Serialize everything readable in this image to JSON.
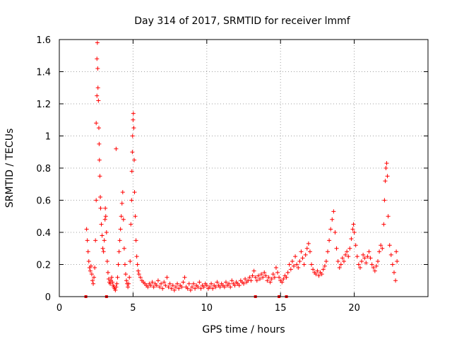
{
  "chart_data": {
    "type": "scatter",
    "title": "Day 314 of 2017, SRMTID for receiver lmmf",
    "xlabel": "GPS time / hours",
    "ylabel": "SRMTID / TECUs",
    "xlim": [
      0,
      25
    ],
    "ylim": [
      0,
      1.6
    ],
    "xticks": [
      0,
      5,
      10,
      15,
      20
    ],
    "yticks": [
      0,
      0.2,
      0.4,
      0.6,
      0.8,
      1,
      1.2,
      1.4,
      1.6
    ],
    "xtick_labels": [
      "0",
      "5",
      "10",
      "15",
      "20"
    ],
    "ytick_labels": [
      "0",
      "0.2",
      "0.4",
      "0.6",
      "0.8",
      "1",
      "1.2",
      "1.4",
      "1.6"
    ],
    "grid": true,
    "marker": "+",
    "color": "#ff0000",
    "baseline_markers_x": [
      1.8,
      3.2,
      13.3,
      14.9,
      15.4
    ],
    "series": [
      {
        "name": "SRMTID",
        "points": [
          [
            1.85,
            0.42
          ],
          [
            1.9,
            0.35
          ],
          [
            1.95,
            0.28
          ],
          [
            2.0,
            0.22
          ],
          [
            2.05,
            0.18
          ],
          [
            2.1,
            0.16
          ],
          [
            2.15,
            0.19
          ],
          [
            2.2,
            0.14
          ],
          [
            2.25,
            0.1
          ],
          [
            2.3,
            0.08
          ],
          [
            2.35,
            0.12
          ],
          [
            2.4,
            0.18
          ],
          [
            2.45,
            0.35
          ],
          [
            2.5,
            0.6
          ],
          [
            2.5,
            1.08
          ],
          [
            2.55,
            1.25
          ],
          [
            2.55,
            1.48
          ],
          [
            2.58,
            1.58
          ],
          [
            2.6,
            1.42
          ],
          [
            2.62,
            1.3
          ],
          [
            2.65,
            1.22
          ],
          [
            2.68,
            1.05
          ],
          [
            2.7,
            0.95
          ],
          [
            2.72,
            0.85
          ],
          [
            2.75,
            0.75
          ],
          [
            2.78,
            0.62
          ],
          [
            2.8,
            0.55
          ],
          [
            2.85,
            0.45
          ],
          [
            2.9,
            0.38
          ],
          [
            2.95,
            0.3
          ],
          [
            3.0,
            0.28
          ],
          [
            3.05,
            0.35
          ],
          [
            3.1,
            0.48
          ],
          [
            3.12,
            0.55
          ],
          [
            3.15,
            0.5
          ],
          [
            3.2,
            0.4
          ],
          [
            3.25,
            0.22
          ],
          [
            3.3,
            0.15
          ],
          [
            3.35,
            0.11
          ],
          [
            3.4,
            0.09
          ],
          [
            3.45,
            0.08
          ],
          [
            3.5,
            0.1
          ],
          [
            3.55,
            0.12
          ],
          [
            3.6,
            0.09
          ],
          [
            3.65,
            0.07
          ],
          [
            3.7,
            0.06
          ],
          [
            3.75,
            0.05
          ],
          [
            3.8,
            0.04
          ],
          [
            3.85,
            0.06
          ],
          [
            3.85,
            0.92
          ],
          [
            3.9,
            0.08
          ],
          [
            3.95,
            0.12
          ],
          [
            4.0,
            0.2
          ],
          [
            4.05,
            0.28
          ],
          [
            4.1,
            0.35
          ],
          [
            4.15,
            0.42
          ],
          [
            4.2,
            0.5
          ],
          [
            4.25,
            0.58
          ],
          [
            4.3,
            0.65
          ],
          [
            4.35,
            0.48
          ],
          [
            4.4,
            0.3
          ],
          [
            4.45,
            0.2
          ],
          [
            4.5,
            0.14
          ],
          [
            4.55,
            0.1
          ],
          [
            4.6,
            0.08
          ],
          [
            4.65,
            0.06
          ],
          [
            4.7,
            0.08
          ],
          [
            4.75,
            0.12
          ],
          [
            4.8,
            0.22
          ],
          [
            4.85,
            0.45
          ],
          [
            4.9,
            0.6
          ],
          [
            4.92,
            0.78
          ],
          [
            4.95,
            0.9
          ],
          [
            4.97,
            1.0
          ],
          [
            5.0,
            1.1
          ],
          [
            5.02,
            1.14
          ],
          [
            5.05,
            1.05
          ],
          [
            5.08,
            0.85
          ],
          [
            5.1,
            0.65
          ],
          [
            5.15,
            0.5
          ],
          [
            5.2,
            0.35
          ],
          [
            5.25,
            0.25
          ],
          [
            5.3,
            0.2
          ],
          [
            5.35,
            0.16
          ],
          [
            5.4,
            0.14
          ],
          [
            5.5,
            0.12
          ],
          [
            5.6,
            0.1
          ],
          [
            5.7,
            0.09
          ],
          [
            5.8,
            0.08
          ],
          [
            5.9,
            0.07
          ],
          [
            6.0,
            0.06
          ],
          [
            6.1,
            0.08
          ],
          [
            6.2,
            0.07
          ],
          [
            6.3,
            0.09
          ],
          [
            6.4,
            0.06
          ],
          [
            6.5,
            0.08
          ],
          [
            6.6,
            0.07
          ],
          [
            6.7,
            0.1
          ],
          [
            6.8,
            0.06
          ],
          [
            6.9,
            0.08
          ],
          [
            7.0,
            0.05
          ],
          [
            7.1,
            0.09
          ],
          [
            7.2,
            0.07
          ],
          [
            7.3,
            0.12
          ],
          [
            7.4,
            0.06
          ],
          [
            7.5,
            0.08
          ],
          [
            7.6,
            0.05
          ],
          [
            7.7,
            0.07
          ],
          [
            7.8,
            0.04
          ],
          [
            7.9,
            0.06
          ],
          [
            8.0,
            0.08
          ],
          [
            8.1,
            0.05
          ],
          [
            8.2,
            0.07
          ],
          [
            8.3,
            0.06
          ],
          [
            8.4,
            0.09
          ],
          [
            8.5,
            0.12
          ],
          [
            8.6,
            0.06
          ],
          [
            8.7,
            0.05
          ],
          [
            8.8,
            0.08
          ],
          [
            8.9,
            0.04
          ],
          [
            9.0,
            0.06
          ],
          [
            9.1,
            0.08
          ],
          [
            9.2,
            0.05
          ],
          [
            9.3,
            0.07
          ],
          [
            9.4,
            0.06
          ],
          [
            9.5,
            0.09
          ],
          [
            9.6,
            0.05
          ],
          [
            9.7,
            0.07
          ],
          [
            9.8,
            0.06
          ],
          [
            9.9,
            0.08
          ],
          [
            10.0,
            0.07
          ],
          [
            10.1,
            0.05
          ],
          [
            10.2,
            0.06
          ],
          [
            10.3,
            0.08
          ],
          [
            10.4,
            0.05
          ],
          [
            10.5,
            0.07
          ],
          [
            10.6,
            0.06
          ],
          [
            10.7,
            0.09
          ],
          [
            10.8,
            0.07
          ],
          [
            10.9,
            0.06
          ],
          [
            11.0,
            0.08
          ],
          [
            11.1,
            0.07
          ],
          [
            11.2,
            0.06
          ],
          [
            11.3,
            0.09
          ],
          [
            11.4,
            0.07
          ],
          [
            11.5,
            0.08
          ],
          [
            11.6,
            0.06
          ],
          [
            11.7,
            0.1
          ],
          [
            11.8,
            0.08
          ],
          [
            11.9,
            0.07
          ],
          [
            12.0,
            0.09
          ],
          [
            12.1,
            0.08
          ],
          [
            12.2,
            0.07
          ],
          [
            12.3,
            0.1
          ],
          [
            12.4,
            0.09
          ],
          [
            12.5,
            0.08
          ],
          [
            12.6,
            0.11
          ],
          [
            12.7,
            0.09
          ],
          [
            12.8,
            0.1
          ],
          [
            12.9,
            0.12
          ],
          [
            13.0,
            0.1
          ],
          [
            13.1,
            0.13
          ],
          [
            13.2,
            0.16
          ],
          [
            13.3,
            0.12
          ],
          [
            13.4,
            0.1
          ],
          [
            13.5,
            0.13
          ],
          [
            13.6,
            0.11
          ],
          [
            13.7,
            0.14
          ],
          [
            13.8,
            0.12
          ],
          [
            13.9,
            0.15
          ],
          [
            14.0,
            0.13
          ],
          [
            14.1,
            0.1
          ],
          [
            14.2,
            0.12
          ],
          [
            14.3,
            0.09
          ],
          [
            14.4,
            0.11
          ],
          [
            14.5,
            0.14
          ],
          [
            14.6,
            0.12
          ],
          [
            14.7,
            0.18
          ],
          [
            14.8,
            0.15
          ],
          [
            14.9,
            0.12
          ],
          [
            15.0,
            0.1
          ],
          [
            15.1,
            0.09
          ],
          [
            15.2,
            0.11
          ],
          [
            15.3,
            0.13
          ],
          [
            15.4,
            0.12
          ],
          [
            15.5,
            0.15
          ],
          [
            15.6,
            0.2
          ],
          [
            15.7,
            0.17
          ],
          [
            15.8,
            0.22
          ],
          [
            15.9,
            0.19
          ],
          [
            16.0,
            0.25
          ],
          [
            16.1,
            0.2
          ],
          [
            16.2,
            0.18
          ],
          [
            16.3,
            0.22
          ],
          [
            16.4,
            0.28
          ],
          [
            16.5,
            0.24
          ],
          [
            16.6,
            0.2
          ],
          [
            16.7,
            0.26
          ],
          [
            16.8,
            0.3
          ],
          [
            16.9,
            0.33
          ],
          [
            17.0,
            0.28
          ],
          [
            17.1,
            0.2
          ],
          [
            17.2,
            0.17
          ],
          [
            17.3,
            0.15
          ],
          [
            17.4,
            0.14
          ],
          [
            17.5,
            0.16
          ],
          [
            17.6,
            0.13
          ],
          [
            17.7,
            0.15
          ],
          [
            17.8,
            0.14
          ],
          [
            17.9,
            0.17
          ],
          [
            18.0,
            0.19
          ],
          [
            18.1,
            0.22
          ],
          [
            18.2,
            0.28
          ],
          [
            18.3,
            0.35
          ],
          [
            18.4,
            0.42
          ],
          [
            18.5,
            0.48
          ],
          [
            18.6,
            0.53
          ],
          [
            18.7,
            0.4
          ],
          [
            18.8,
            0.3
          ],
          [
            18.9,
            0.22
          ],
          [
            19.0,
            0.18
          ],
          [
            19.1,
            0.2
          ],
          [
            19.2,
            0.24
          ],
          [
            19.3,
            0.22
          ],
          [
            19.4,
            0.26
          ],
          [
            19.5,
            0.28
          ],
          [
            19.6,
            0.25
          ],
          [
            19.7,
            0.3
          ],
          [
            19.8,
            0.36
          ],
          [
            19.9,
            0.42
          ],
          [
            19.95,
            0.45
          ],
          [
            20.0,
            0.4
          ],
          [
            20.1,
            0.32
          ],
          [
            20.2,
            0.25
          ],
          [
            20.3,
            0.2
          ],
          [
            20.4,
            0.18
          ],
          [
            20.5,
            0.22
          ],
          [
            20.6,
            0.26
          ],
          [
            20.7,
            0.24
          ],
          [
            20.8,
            0.21
          ],
          [
            20.9,
            0.25
          ],
          [
            21.0,
            0.28
          ],
          [
            21.1,
            0.24
          ],
          [
            21.2,
            0.2
          ],
          [
            21.3,
            0.18
          ],
          [
            21.4,
            0.16
          ],
          [
            21.5,
            0.19
          ],
          [
            21.6,
            0.22
          ],
          [
            21.7,
            0.28
          ],
          [
            21.8,
            0.32
          ],
          [
            21.9,
            0.3
          ],
          [
            22.0,
            0.45
          ],
          [
            22.05,
            0.6
          ],
          [
            22.1,
            0.72
          ],
          [
            22.15,
            0.8
          ],
          [
            22.2,
            0.83
          ],
          [
            22.25,
            0.75
          ],
          [
            22.3,
            0.5
          ],
          [
            22.4,
            0.32
          ],
          [
            22.5,
            0.26
          ],
          [
            22.6,
            0.2
          ],
          [
            22.7,
            0.15
          ],
          [
            22.8,
            0.1
          ],
          [
            22.85,
            0.28
          ],
          [
            22.9,
            0.22
          ]
        ]
      }
    ]
  }
}
